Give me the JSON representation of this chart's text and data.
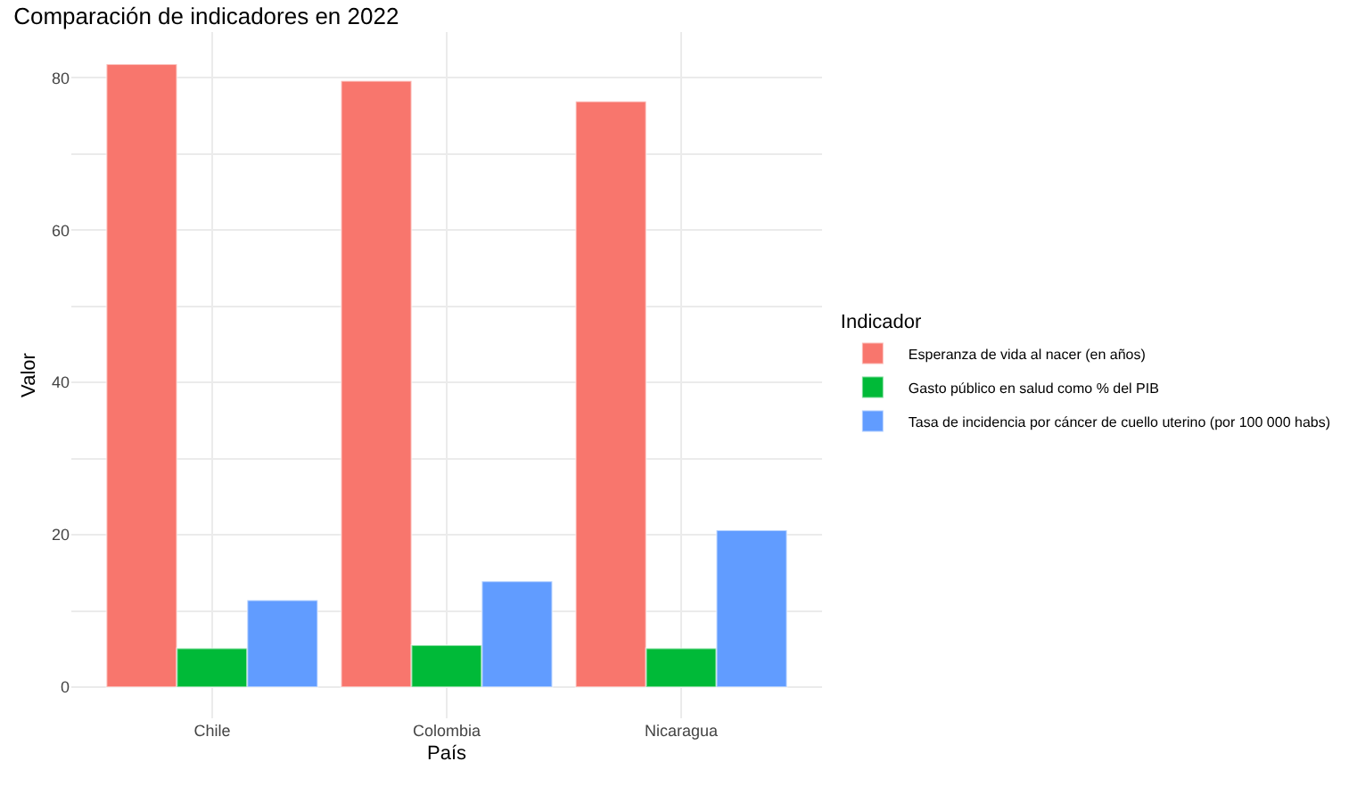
{
  "chart_data": {
    "type": "bar",
    "title": "Comparación de indicadores en 2022",
    "xlabel": "País",
    "ylabel": "Valor",
    "legend_title": "Indicador",
    "categories": [
      "Chile",
      "Colombia",
      "Nicaragua"
    ],
    "series": [
      {
        "name": "Esperanza de vida al nacer (en años)",
        "color": "#f8766d",
        "values": [
          81.8,
          79.6,
          76.9
        ]
      },
      {
        "name": "Gasto público en salud como % del PIB",
        "color": "#00ba38",
        "values": [
          5.1,
          5.5,
          5.1
        ]
      },
      {
        "name": "Tasa de incidencia por cáncer de cuello uterino (por 100 000 habs)",
        "color": "#619cff",
        "values": [
          11.4,
          13.9,
          20.6
        ]
      }
    ],
    "ylim": [
      -4.1,
      86
    ],
    "yticks": [
      0,
      {
        "value": 10,
        "label": null
      },
      20,
      {
        "value": 30,
        "label": null
      },
      40,
      {
        "value": 50,
        "label": null
      },
      60,
      {
        "value": 70,
        "label": null
      },
      80
    ],
    "grid": true,
    "legend": "right"
  }
}
